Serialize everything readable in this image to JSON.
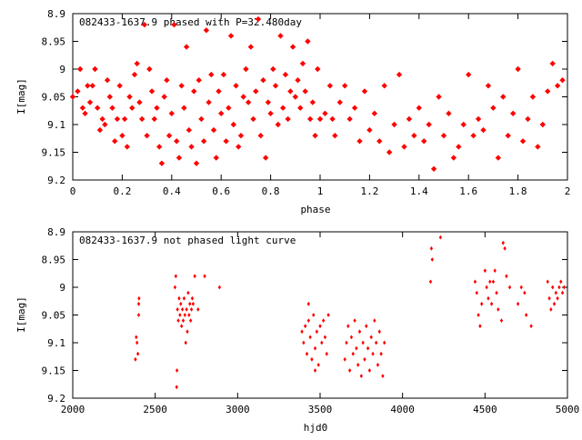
{
  "chart_data": [
    {
      "type": "scatter",
      "title": "082433-1637.9 phased with P=32.480day",
      "xlabel": "phase",
      "ylabel": "I[mag]",
      "xlim": [
        0,
        2
      ],
      "ylim": [
        8.9,
        9.2
      ],
      "y_inverted": true,
      "grid": false,
      "x_ticks": [
        "0",
        "0.2",
        "0.4",
        "0.6",
        "0.8",
        "1",
        "1.2",
        "1.4",
        "1.6",
        "1.8",
        "2"
      ],
      "y_ticks": [
        "8.9",
        "8.95",
        "9",
        "9.05",
        "9.1",
        "9.15",
        "9.2"
      ],
      "marker": "star",
      "color": "#ff0000",
      "points": [
        [
          0.0,
          9.05
        ],
        [
          0.02,
          9.04
        ],
        [
          0.03,
          9.0
        ],
        [
          0.04,
          9.07
        ],
        [
          0.05,
          9.08
        ],
        [
          0.06,
          9.03
        ],
        [
          0.07,
          9.06
        ],
        [
          0.08,
          9.03
        ],
        [
          0.09,
          9.0
        ],
        [
          0.1,
          9.07
        ],
        [
          0.11,
          9.11
        ],
        [
          0.12,
          9.09
        ],
        [
          0.13,
          9.1
        ],
        [
          0.14,
          9.02
        ],
        [
          0.15,
          9.05
        ],
        [
          0.16,
          9.07
        ],
        [
          0.17,
          9.13
        ],
        [
          0.18,
          9.09
        ],
        [
          0.19,
          9.03
        ],
        [
          0.2,
          9.12
        ],
        [
          0.21,
          9.09
        ],
        [
          0.22,
          9.14
        ],
        [
          0.23,
          9.05
        ],
        [
          0.24,
          9.07
        ],
        [
          0.25,
          9.01
        ],
        [
          0.26,
          8.99
        ],
        [
          0.27,
          9.06
        ],
        [
          0.28,
          9.09
        ],
        [
          0.29,
          8.92
        ],
        [
          0.3,
          9.12
        ],
        [
          0.31,
          9.0
        ],
        [
          0.32,
          9.04
        ],
        [
          0.33,
          9.09
        ],
        [
          0.34,
          9.07
        ],
        [
          0.35,
          9.14
        ],
        [
          0.36,
          9.17
        ],
        [
          0.37,
          9.05
        ],
        [
          0.38,
          9.02
        ],
        [
          0.39,
          9.12
        ],
        [
          0.4,
          9.08
        ],
        [
          0.41,
          8.92
        ],
        [
          0.42,
          9.13
        ],
        [
          0.43,
          9.16
        ],
        [
          0.44,
          9.03
        ],
        [
          0.45,
          9.07
        ],
        [
          0.46,
          8.96
        ],
        [
          0.47,
          9.11
        ],
        [
          0.48,
          9.14
        ],
        [
          0.49,
          9.04
        ],
        [
          0.5,
          9.17
        ],
        [
          0.51,
          9.02
        ],
        [
          0.52,
          9.09
        ],
        [
          0.53,
          9.13
        ],
        [
          0.54,
          8.93
        ],
        [
          0.55,
          9.06
        ],
        [
          0.56,
          9.01
        ],
        [
          0.57,
          9.11
        ],
        [
          0.58,
          9.16
        ],
        [
          0.59,
          9.04
        ],
        [
          0.6,
          9.08
        ],
        [
          0.61,
          9.01
        ],
        [
          0.62,
          9.13
        ],
        [
          0.63,
          9.07
        ],
        [
          0.64,
          8.94
        ],
        [
          0.65,
          9.1
        ],
        [
          0.66,
          9.03
        ],
        [
          0.67,
          9.14
        ],
        [
          0.68,
          9.12
        ],
        [
          0.69,
          9.05
        ],
        [
          0.7,
          9.0
        ],
        [
          0.71,
          9.06
        ],
        [
          0.72,
          8.96
        ],
        [
          0.73,
          9.09
        ],
        [
          0.74,
          9.04
        ],
        [
          0.75,
          8.91
        ],
        [
          0.76,
          9.12
        ],
        [
          0.77,
          9.02
        ],
        [
          0.78,
          9.16
        ],
        [
          0.79,
          9.06
        ],
        [
          0.8,
          9.08
        ],
        [
          0.81,
          9.0
        ],
        [
          0.82,
          9.03
        ],
        [
          0.83,
          9.1
        ],
        [
          0.84,
          8.94
        ],
        [
          0.85,
          9.07
        ],
        [
          0.86,
          9.01
        ],
        [
          0.87,
          9.09
        ],
        [
          0.88,
          9.04
        ],
        [
          0.89,
          8.96
        ],
        [
          0.9,
          9.05
        ],
        [
          0.91,
          9.02
        ],
        [
          0.92,
          9.07
        ],
        [
          0.93,
          8.99
        ],
        [
          0.94,
          9.04
        ],
        [
          0.95,
          8.95
        ],
        [
          0.96,
          9.09
        ],
        [
          0.97,
          9.06
        ],
        [
          0.98,
          9.12
        ],
        [
          0.99,
          9.0
        ],
        [
          1.0,
          9.09
        ],
        [
          1.02,
          9.08
        ],
        [
          1.04,
          9.03
        ],
        [
          1.05,
          9.09
        ],
        [
          1.06,
          9.12
        ],
        [
          1.08,
          9.06
        ],
        [
          1.1,
          9.03
        ],
        [
          1.12,
          9.09
        ],
        [
          1.14,
          9.07
        ],
        [
          1.16,
          9.13
        ],
        [
          1.18,
          9.04
        ],
        [
          1.2,
          9.11
        ],
        [
          1.22,
          9.08
        ],
        [
          1.24,
          9.13
        ],
        [
          1.26,
          9.03
        ],
        [
          1.28,
          9.15
        ],
        [
          1.3,
          9.1
        ],
        [
          1.32,
          9.01
        ],
        [
          1.34,
          9.14
        ],
        [
          1.36,
          9.09
        ],
        [
          1.38,
          9.12
        ],
        [
          1.4,
          9.07
        ],
        [
          1.42,
          9.13
        ],
        [
          1.44,
          9.1
        ],
        [
          1.46,
          9.18
        ],
        [
          1.48,
          9.05
        ],
        [
          1.5,
          9.12
        ],
        [
          1.52,
          9.08
        ],
        [
          1.54,
          9.16
        ],
        [
          1.56,
          9.14
        ],
        [
          1.58,
          9.1
        ],
        [
          1.6,
          9.01
        ],
        [
          1.62,
          9.12
        ],
        [
          1.64,
          9.09
        ],
        [
          1.66,
          9.11
        ],
        [
          1.68,
          9.03
        ],
        [
          1.7,
          9.07
        ],
        [
          1.72,
          9.16
        ],
        [
          1.74,
          9.05
        ],
        [
          1.76,
          9.12
        ],
        [
          1.78,
          9.08
        ],
        [
          1.8,
          9.0
        ],
        [
          1.82,
          9.13
        ],
        [
          1.84,
          9.09
        ],
        [
          1.86,
          9.05
        ],
        [
          1.88,
          9.14
        ],
        [
          1.9,
          9.1
        ],
        [
          1.92,
          9.04
        ],
        [
          1.94,
          8.99
        ],
        [
          1.96,
          9.03
        ],
        [
          1.98,
          9.02
        ]
      ]
    },
    {
      "type": "scatter",
      "title": "082433-1637.9 not phased light curve",
      "xlabel": "hjd0",
      "ylabel": "I[mag]",
      "xlim": [
        2000,
        5000
      ],
      "ylim": [
        8.9,
        9.2
      ],
      "y_inverted": true,
      "grid": false,
      "x_ticks": [
        "2000",
        "2500",
        "3000",
        "3500",
        "4000",
        "4500",
        "5000"
      ],
      "y_ticks": [
        "8.9",
        "8.95",
        "9",
        "9.05",
        "9.1",
        "9.15",
        "9.2"
      ],
      "marker": "diamond",
      "color": "#ff0000",
      "points": [
        [
          2380,
          9.13
        ],
        [
          2385,
          9.09
        ],
        [
          2390,
          9.1
        ],
        [
          2395,
          9.12
        ],
        [
          2400,
          9.03
        ],
        [
          2400,
          9.05
        ],
        [
          2402,
          9.02
        ],
        [
          2620,
          9.0
        ],
        [
          2625,
          8.98
        ],
        [
          2630,
          9.18
        ],
        [
          2632,
          9.15
        ],
        [
          2635,
          9.04
        ],
        [
          2640,
          9.06
        ],
        [
          2645,
          9.02
        ],
        [
          2650,
          9.05
        ],
        [
          2655,
          9.03
        ],
        [
          2660,
          9.07
        ],
        [
          2665,
          9.04
        ],
        [
          2670,
          9.06
        ],
        [
          2675,
          9.02
        ],
        [
          2680,
          9.05
        ],
        [
          2685,
          9.1
        ],
        [
          2690,
          9.04
        ],
        [
          2695,
          9.08
        ],
        [
          2700,
          9.01
        ],
        [
          2705,
          9.05
        ],
        [
          2710,
          9.03
        ],
        [
          2715,
          9.06
        ],
        [
          2720,
          9.04
        ],
        [
          2725,
          9.02
        ],
        [
          2730,
          9.03
        ],
        [
          2740,
          8.98
        ],
        [
          2760,
          9.04
        ],
        [
          2800,
          8.98
        ],
        [
          2890,
          9.0
        ],
        [
          3390,
          9.08
        ],
        [
          3400,
          9.1
        ],
        [
          3410,
          9.07
        ],
        [
          3420,
          9.12
        ],
        [
          3430,
          9.06
        ],
        [
          3440,
          9.09
        ],
        [
          3450,
          9.13
        ],
        [
          3460,
          9.05
        ],
        [
          3470,
          9.11
        ],
        [
          3480,
          9.08
        ],
        [
          3490,
          9.14
        ],
        [
          3500,
          9.07
        ],
        [
          3510,
          9.1
        ],
        [
          3520,
          9.06
        ],
        [
          3530,
          9.09
        ],
        [
          3540,
          9.12
        ],
        [
          3550,
          9.05
        ],
        [
          3430,
          9.03
        ],
        [
          3470,
          9.15
        ],
        [
          3650,
          9.13
        ],
        [
          3660,
          9.1
        ],
        [
          3670,
          9.07
        ],
        [
          3680,
          9.15
        ],
        [
          3690,
          9.09
        ],
        [
          3700,
          9.12
        ],
        [
          3710,
          9.06
        ],
        [
          3720,
          9.11
        ],
        [
          3730,
          9.14
        ],
        [
          3740,
          9.08
        ],
        [
          3750,
          9.16
        ],
        [
          3760,
          9.1
        ],
        [
          3770,
          9.13
        ],
        [
          3780,
          9.07
        ],
        [
          3790,
          9.11
        ],
        [
          3800,
          9.15
        ],
        [
          3810,
          9.09
        ],
        [
          3820,
          9.12
        ],
        [
          3830,
          9.06
        ],
        [
          3840,
          9.1
        ],
        [
          3850,
          9.14
        ],
        [
          3860,
          9.08
        ],
        [
          3870,
          9.12
        ],
        [
          3880,
          9.16
        ],
        [
          3890,
          9.1
        ],
        [
          4170,
          8.99
        ],
        [
          4175,
          8.93
        ],
        [
          4180,
          8.95
        ],
        [
          4230,
          8.91
        ],
        [
          4440,
          8.99
        ],
        [
          4450,
          9.01
        ],
        [
          4460,
          9.05
        ],
        [
          4470,
          9.07
        ],
        [
          4480,
          9.03
        ],
        [
          4500,
          8.97
        ],
        [
          4510,
          9.0
        ],
        [
          4520,
          9.02
        ],
        [
          4530,
          8.99
        ],
        [
          4540,
          9.03
        ],
        [
          4550,
          8.99
        ],
        [
          4560,
          8.97
        ],
        [
          4570,
          9.01
        ],
        [
          4580,
          9.04
        ],
        [
          4600,
          9.06
        ],
        [
          4610,
          8.92
        ],
        [
          4620,
          8.93
        ],
        [
          4630,
          8.98
        ],
        [
          4650,
          9.0
        ],
        [
          4700,
          9.03
        ],
        [
          4720,
          9.0
        ],
        [
          4740,
          9.01
        ],
        [
          4750,
          9.05
        ],
        [
          4780,
          9.07
        ],
        [
          4880,
          8.99
        ],
        [
          4890,
          9.02
        ],
        [
          4900,
          9.04
        ],
        [
          4910,
          9.0
        ],
        [
          4920,
          9.03
        ],
        [
          4930,
          9.01
        ],
        [
          4940,
          9.02
        ],
        [
          4950,
          9.0
        ],
        [
          4960,
          8.99
        ],
        [
          4970,
          9.01
        ],
        [
          4980,
          9.0
        ]
      ]
    }
  ]
}
